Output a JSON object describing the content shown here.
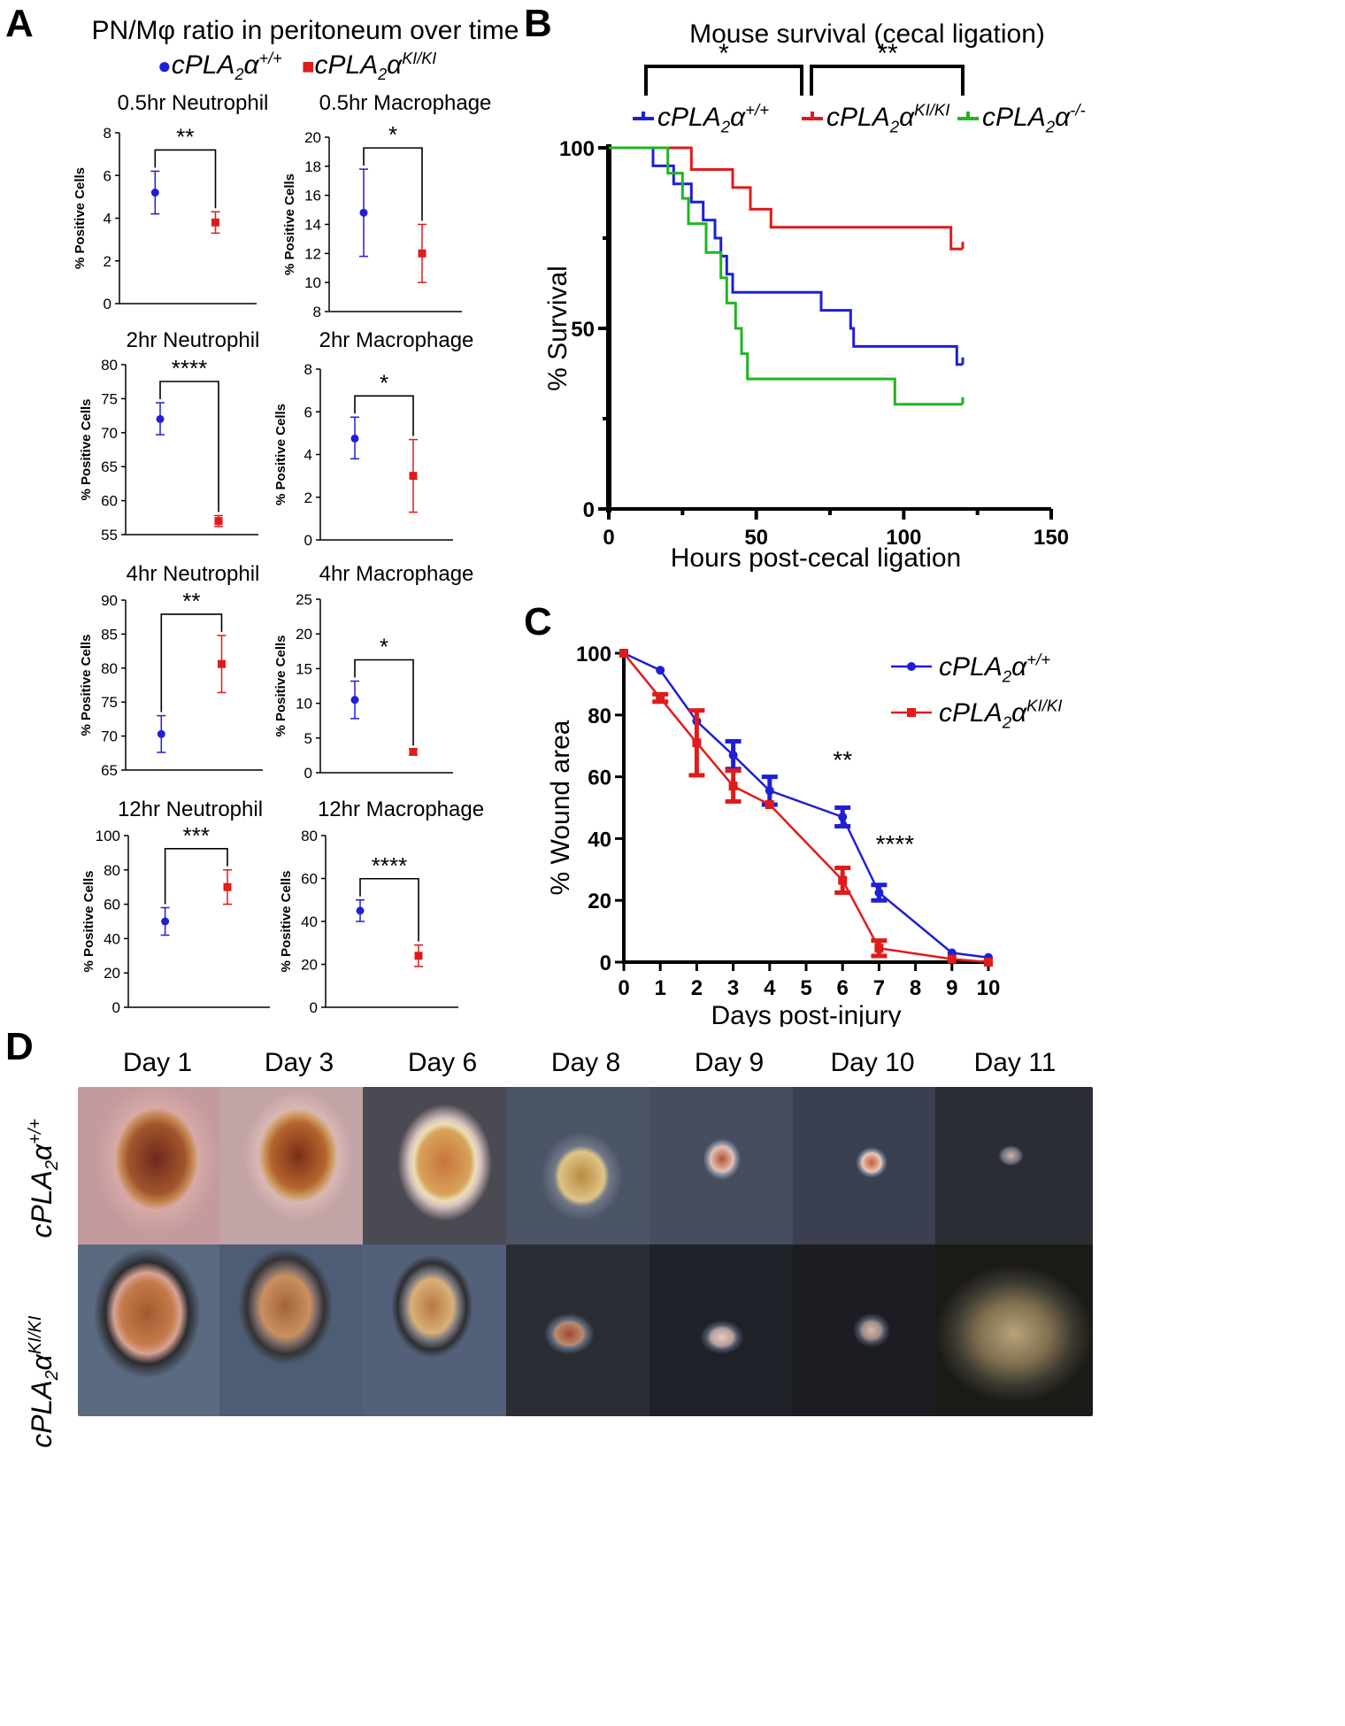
{
  "panels": {
    "A": "A",
    "B": "B",
    "C": "C",
    "D": "D"
  },
  "genotypes": {
    "wt": {
      "base": "cPLA",
      "sub": "2",
      "greek": "α",
      "sup": "+/+"
    },
    "ki": {
      "base": "cPLA",
      "sub": "2",
      "greek": "α",
      "sup": "KI/KI"
    },
    "ko": {
      "base": "cPLA",
      "sub": "2",
      "greek": "α",
      "sup": "-/-"
    }
  },
  "colors": {
    "wt": "#1f1fd6",
    "ki": "#e01b1b",
    "ko": "#22b422"
  },
  "panel_a_title": "PN/Mφ ratio in peritoneum over time",
  "panel_b_title": "Mouse survival (cecal ligation)",
  "panel_b_sig_left": "*",
  "panel_b_sig_right": "**",
  "chart_data": [
    {
      "id": "a1",
      "type": "scatter",
      "title": "0.5hr Neutrophil",
      "ylabel": "% Positive Cells",
      "ylim": [
        0,
        8
      ],
      "yticks": [
        0,
        2,
        4,
        6,
        8
      ],
      "series": [
        {
          "name": "cPLA2α+/+",
          "mean": 5.2,
          "err_low": 4.2,
          "err_high": 6.2
        },
        {
          "name": "cPLA2αKI/KI",
          "mean": 3.8,
          "err_low": 3.3,
          "err_high": 4.3
        }
      ],
      "significance": "**"
    },
    {
      "id": "a2",
      "type": "scatter",
      "title": "0.5hr Macrophage",
      "ylabel": "% Positive Cells",
      "ylim": [
        8,
        20
      ],
      "yticks": [
        8,
        10,
        12,
        14,
        16,
        18,
        20
      ],
      "series": [
        {
          "name": "cPLA2α+/+",
          "mean": 14.8,
          "err_low": 11.8,
          "err_high": 17.8
        },
        {
          "name": "cPLA2αKI/KI",
          "mean": 12.0,
          "err_low": 10.0,
          "err_high": 14.0
        }
      ],
      "significance": "*"
    },
    {
      "id": "a3",
      "type": "scatter",
      "title": "2hr Neutrophil",
      "ylabel": "% Positive Cells",
      "ylim": [
        55,
        80
      ],
      "yticks": [
        55,
        60,
        65,
        70,
        75,
        80
      ],
      "series": [
        {
          "name": "cPLA2α+/+",
          "mean": 72,
          "err_low": 69.7,
          "err_high": 74.4
        },
        {
          "name": "cPLA2αKI/KI",
          "mean": 57,
          "err_low": 56.2,
          "err_high": 57.8
        }
      ],
      "significance": "****"
    },
    {
      "id": "a4",
      "type": "scatter",
      "title": "2hr Macrophage",
      "ylabel": "% Positive Cells",
      "ylim": [
        0,
        8
      ],
      "yticks": [
        0,
        2,
        4,
        6,
        8
      ],
      "series": [
        {
          "name": "cPLA2α+/+",
          "mean": 4.75,
          "err_low": 3.8,
          "err_high": 5.75
        },
        {
          "name": "cPLA2αKI/KI",
          "mean": 3.0,
          "err_low": 1.3,
          "err_high": 4.7
        }
      ],
      "significance": "*"
    },
    {
      "id": "a5",
      "type": "scatter",
      "title": "4hr Neutrophil",
      "ylabel": "% Positive Cells",
      "ylim": [
        65,
        90
      ],
      "yticks": [
        65,
        70,
        75,
        80,
        85,
        90
      ],
      "series": [
        {
          "name": "cPLA2α+/+",
          "mean": 70.3,
          "err_low": 67.6,
          "err_high": 73.0
        },
        {
          "name": "cPLA2αKI/KI",
          "mean": 80.6,
          "err_low": 76.4,
          "err_high": 84.8
        }
      ],
      "significance": "**"
    },
    {
      "id": "a6",
      "type": "scatter",
      "title": "4hr Macrophage",
      "ylabel": "% Positive Cells",
      "ylim": [
        0,
        25
      ],
      "yticks": [
        0,
        5,
        10,
        15,
        20,
        25
      ],
      "series": [
        {
          "name": "cPLA2α+/+",
          "mean": 10.5,
          "err_low": 7.8,
          "err_high": 13.2
        },
        {
          "name": "cPLA2αKI/KI",
          "mean": 3.0,
          "err_low": 2.6,
          "err_high": 3.4
        }
      ],
      "significance": "*"
    },
    {
      "id": "a7",
      "type": "scatter",
      "title": "12hr Neutrophil",
      "ylabel": "% Positive Cells",
      "ylim": [
        0,
        100
      ],
      "yticks": [
        0,
        20,
        40,
        60,
        80,
        100
      ],
      "series": [
        {
          "name": "cPLA2α+/+",
          "mean": 50,
          "err_low": 42,
          "err_high": 58
        },
        {
          "name": "cPLA2αKI/KI",
          "mean": 70,
          "err_low": 60,
          "err_high": 80
        }
      ],
      "significance": "***"
    },
    {
      "id": "a8",
      "type": "scatter",
      "title": "12hr Macrophage",
      "ylabel": "% Positive Cells",
      "ylim": [
        0,
        80
      ],
      "yticks": [
        0,
        20,
        40,
        60,
        80
      ],
      "series": [
        {
          "name": "cPLA2α+/+",
          "mean": 45,
          "err_low": 40,
          "err_high": 50
        },
        {
          "name": "cPLA2αKI/KI",
          "mean": 24,
          "err_low": 19,
          "err_high": 29
        }
      ],
      "significance": "****"
    },
    {
      "id": "b",
      "type": "line",
      "title": "Mouse survival (cecal ligation)",
      "xlabel": "Hours post-cecal ligation",
      "ylabel": "% Survival",
      "xlim": [
        0,
        150
      ],
      "ylim": [
        0,
        100
      ],
      "xticks": [
        0,
        50,
        100,
        150
      ],
      "yticks": [
        0,
        50,
        100
      ],
      "series": [
        {
          "name": "cPLA2α+/+",
          "x": [
            0,
            15,
            15,
            22,
            22,
            28,
            28,
            32,
            32,
            36,
            36,
            38,
            38,
            40,
            40,
            42,
            42,
            72,
            72,
            82,
            82,
            83,
            83,
            118,
            118,
            120
          ],
          "y": [
            100,
            100,
            95,
            95,
            90,
            90,
            85,
            85,
            80,
            80,
            75,
            75,
            70,
            70,
            65,
            65,
            60,
            60,
            55,
            55,
            50,
            50,
            45,
            45,
            40,
            40
          ]
        },
        {
          "name": "cPLA2αKI/KI",
          "x": [
            0,
            28,
            28,
            42,
            42,
            48,
            48,
            55,
            55,
            116,
            116,
            120
          ],
          "y": [
            100,
            100,
            94,
            94,
            89,
            89,
            83,
            83,
            78,
            78,
            72,
            72
          ]
        },
        {
          "name": "cPLA2α-/-",
          "x": [
            0,
            20,
            20,
            25,
            25,
            27,
            27,
            33,
            33,
            36,
            36,
            38,
            38,
            40,
            40,
            43,
            43,
            45,
            45,
            47,
            47,
            49,
            49,
            97,
            97,
            120
          ],
          "y": [
            100,
            100,
            93,
            93,
            86,
            86,
            79,
            79,
            71,
            71,
            71,
            71,
            64,
            64,
            57,
            57,
            50,
            50,
            43,
            43,
            36,
            36,
            36,
            36,
            29,
            29
          ]
        }
      ]
    },
    {
      "id": "c",
      "type": "line",
      "xlabel": "Days post-injury",
      "ylabel": "% Wound area",
      "xlim": [
        0,
        10
      ],
      "ylim": [
        0,
        100
      ],
      "xticks": [
        0,
        1,
        2,
        3,
        4,
        5,
        6,
        7,
        8,
        9,
        10
      ],
      "yticks": [
        0,
        20,
        40,
        60,
        80,
        100
      ],
      "series": [
        {
          "name": "cPLA2α+/+",
          "x": [
            0,
            1,
            2,
            3,
            4,
            6,
            7,
            9,
            10
          ],
          "y": [
            100,
            94.5,
            78,
            67,
            55.5,
            47,
            22.5,
            3,
            1.5
          ],
          "err": [
            0,
            0,
            0,
            4.5,
            4.5,
            3,
            2.5,
            0,
            0
          ]
        },
        {
          "name": "cPLA2αKI/KI",
          "x": [
            0,
            1,
            2,
            3,
            4,
            6,
            7,
            9,
            10
          ],
          "y": [
            100,
            85.5,
            71,
            57,
            51,
            26.5,
            4.5,
            1,
            0
          ],
          "err": [
            0,
            1.2,
            10.5,
            5,
            0,
            4,
            2.5,
            0,
            0
          ]
        }
      ],
      "annotations": [
        {
          "x": 6,
          "text": "**"
        },
        {
          "x": 7,
          "text": "****"
        }
      ]
    }
  ],
  "panel_d": {
    "days": [
      "Day 1",
      "Day 3",
      "Day 6",
      "Day 8",
      "Day 9",
      "Day 10",
      "Day 11"
    ]
  }
}
